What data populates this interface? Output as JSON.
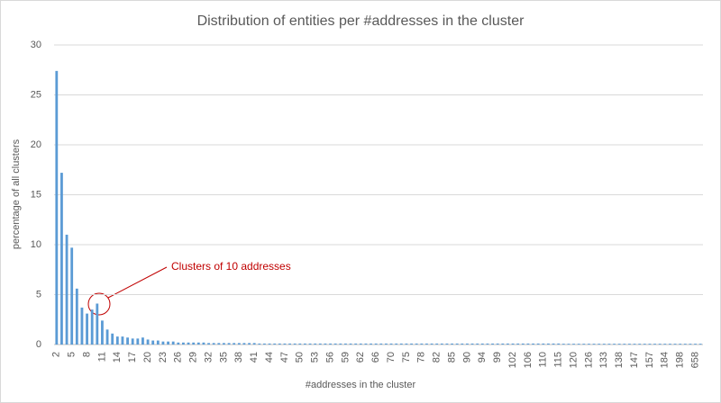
{
  "chart_data": {
    "type": "bar",
    "title": "Distribution of entities per #addresses in the cluster",
    "x_label": "#addresses in the cluster",
    "y_label": "percentage of all clusters",
    "annotation": "Clusters of 10 addresses",
    "color": "#5b9bd5",
    "ylim": [
      0,
      30
    ],
    "yticks": [
      0,
      5,
      10,
      15,
      20,
      25,
      30
    ],
    "grid": true,
    "categories": [
      "2",
      null,
      null,
      "5",
      null,
      null,
      "8",
      null,
      null,
      "11",
      null,
      null,
      "14",
      null,
      null,
      "17",
      null,
      null,
      "20",
      null,
      null,
      "23",
      null,
      null,
      "26",
      null,
      null,
      "29",
      null,
      null,
      "32",
      null,
      null,
      "35",
      null,
      null,
      "38",
      null,
      null,
      "41",
      null,
      null,
      "44",
      null,
      null,
      "47",
      null,
      null,
      "50",
      null,
      null,
      "53",
      null,
      null,
      "56",
      null,
      null,
      "59",
      null,
      null,
      "62",
      null,
      null,
      "66",
      null,
      null,
      "70",
      null,
      null,
      "75",
      null,
      null,
      "78",
      null,
      null,
      "82",
      null,
      null,
      "85",
      null,
      null,
      "90",
      null,
      null,
      "94",
      null,
      null,
      "99",
      null,
      null,
      "102",
      null,
      null,
      "106",
      null,
      null,
      "110",
      null,
      null,
      "115",
      null,
      null,
      "120",
      null,
      null,
      "126",
      null,
      null,
      "133",
      null,
      null,
      "138",
      null,
      null,
      "147",
      null,
      null,
      "157",
      null,
      null,
      "184",
      null,
      null,
      "198",
      null,
      null,
      "658",
      null
    ],
    "values": [
      27.4,
      17.2,
      11.0,
      9.7,
      5.6,
      3.7,
      3.1,
      3.5,
      4.1,
      2.4,
      1.5,
      1.1,
      0.8,
      0.8,
      0.7,
      0.6,
      0.6,
      0.7,
      0.5,
      0.4,
      0.4,
      0.3,
      0.3,
      0.3,
      0.2,
      0.2,
      0.2,
      0.2,
      0.2,
      0.2,
      0.15,
      0.15,
      0.15,
      0.15,
      0.15,
      0.15,
      0.15,
      0.15,
      0.15,
      0.15,
      0.1,
      0.1,
      0.1,
      0.1,
      0.1,
      0.1,
      0.1,
      0.1,
      0.1,
      0.1,
      0.1,
      0.1,
      0.1,
      0.1,
      0.1,
      0.1,
      0.1,
      0.1,
      0.1,
      0.1,
      0.1,
      0.1,
      0.1,
      0.1,
      0.1,
      0.1,
      0.1,
      0.1,
      0.1,
      0.1,
      0.1,
      0.1,
      0.1,
      0.1,
      0.1,
      0.1,
      0.1,
      0.1,
      0.1,
      0.1,
      0.1,
      0.1,
      0.1,
      0.1,
      0.1,
      0.1,
      0.1,
      0.1,
      0.1,
      0.1,
      0.1,
      0.1,
      0.1,
      0.1,
      0.1,
      0.1,
      0.1,
      0.1,
      0.1,
      0.1,
      0.08,
      0.08,
      0.08,
      0.08,
      0.08,
      0.08,
      0.08,
      0.08,
      0.08,
      0.08,
      0.08,
      0.08,
      0.08,
      0.08,
      0.08,
      0.08,
      0.08,
      0.08,
      0.08,
      0.08,
      0.08,
      0.08,
      0.08,
      0.08,
      0.08,
      0.08,
      0.08,
      0.08
    ]
  }
}
